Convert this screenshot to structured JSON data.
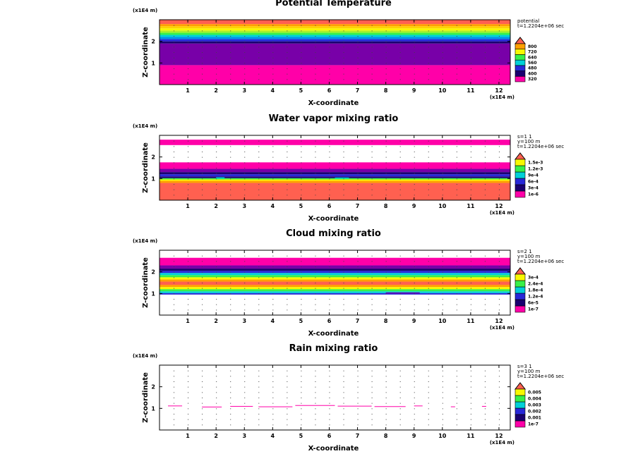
{
  "chart_data": [
    {
      "type": "heatmap",
      "title": "Potential Temperature",
      "xlabel": "X-coordinate",
      "ylabel": "Z-coordinate",
      "x_unit": "(x1E4 m)",
      "z_unit": "(x1E4 m)",
      "info_lines": [
        "potential",
        "t=1.2204e+06 sec"
      ],
      "xlim": [
        0,
        12.4
      ],
      "ylim": [
        0,
        3
      ],
      "xticks": [
        "1",
        "2",
        "3",
        "4",
        "5",
        "6",
        "7",
        "8",
        "9",
        "10",
        "11",
        "12"
      ],
      "yticks": [
        "1",
        "2"
      ],
      "colorbar_labels": [
        "320",
        "400",
        "480",
        "560",
        "640",
        "720",
        "800"
      ],
      "colorbar_colors": [
        "#ff00a8",
        "#1a0070",
        "#2828d8",
        "#00d0d8",
        "#38f048",
        "#f8f800",
        "#ffa000",
        "#ff6050"
      ],
      "layers": [
        {
          "z0": 0.0,
          "z1": 0.9,
          "color": "#ff00a8"
        },
        {
          "z0": 0.9,
          "z1": 1.9,
          "color": "#7800a8"
        },
        {
          "z0": 1.9,
          "z1": 2.0,
          "color": "#1a0070"
        },
        {
          "z0": 2.0,
          "z1": 2.1,
          "color": "#2828d8"
        },
        {
          "z0": 2.1,
          "z1": 2.2,
          "color": "#0090e8"
        },
        {
          "z0": 2.2,
          "z1": 2.3,
          "color": "#00d0d8"
        },
        {
          "z0": 2.3,
          "z1": 2.4,
          "color": "#38f048"
        },
        {
          "z0": 2.4,
          "z1": 2.5,
          "color": "#a8f028"
        },
        {
          "z0": 2.5,
          "z1": 2.6,
          "color": "#f8f800"
        },
        {
          "z0": 2.6,
          "z1": 2.7,
          "color": "#ffd000"
        },
        {
          "z0": 2.7,
          "z1": 2.8,
          "color": "#ffa000"
        },
        {
          "z0": 2.8,
          "z1": 3.0,
          "color": "#ff6050"
        }
      ],
      "specks": []
    },
    {
      "type": "heatmap",
      "title": "Water vapor mixing ratio",
      "xlabel": "X-coordinate",
      "ylabel": "Z-coordinate",
      "x_unit": "(x1E4 m)",
      "z_unit": "(x1E4 m)",
      "info_lines": [
        "s=1 1",
        "y=100 m",
        "t=1.2204e+06 sec"
      ],
      "xlim": [
        0,
        12.4
      ],
      "ylim": [
        0,
        3
      ],
      "xticks": [
        "1",
        "2",
        "3",
        "4",
        "5",
        "6",
        "7",
        "8",
        "9",
        "10",
        "11",
        "12"
      ],
      "yticks": [
        "1",
        "2"
      ],
      "colorbar_labels": [
        "1e-6",
        "3e-4",
        "6e-4",
        "9e-4",
        "1.2e-3",
        "1.5e-3"
      ],
      "colorbar_colors": [
        "#ff00a8",
        "#1a0070",
        "#2828d8",
        "#00d0d8",
        "#38f048",
        "#f8f800",
        "#ff6050"
      ],
      "layers": [
        {
          "z0": 0.0,
          "z1": 0.8,
          "color": "#ff6050"
        },
        {
          "z0": 0.8,
          "z1": 0.9,
          "color": "#ffa000"
        },
        {
          "z0": 0.9,
          "z1": 0.96,
          "color": "#f8f800"
        },
        {
          "z0": 0.96,
          "z1": 1.02,
          "color": "#38f048"
        },
        {
          "z0": 1.02,
          "z1": 1.1,
          "color": "#1a0070"
        },
        {
          "z0": 1.1,
          "z1": 1.2,
          "color": "#2828d8"
        },
        {
          "z0": 1.2,
          "z1": 1.3,
          "color": "#1a0070"
        },
        {
          "z0": 1.3,
          "z1": 1.45,
          "color": "#7800a8"
        },
        {
          "z0": 1.45,
          "z1": 1.75,
          "color": "#ff00a8"
        },
        {
          "z0": 2.55,
          "z1": 2.8,
          "color": "#ff00a8"
        }
      ],
      "specks": [
        {
          "x": 2.0,
          "z": 1.0,
          "w": 0.3,
          "h": 0.06,
          "color": "#00d0d8"
        },
        {
          "x": 6.2,
          "z": 1.0,
          "w": 0.5,
          "h": 0.05,
          "color": "#00d0d8"
        }
      ]
    },
    {
      "type": "heatmap",
      "title": "Cloud mixing ratio",
      "xlabel": "X-coordinate",
      "ylabel": "Z-coordinate",
      "x_unit": "(x1E4 m)",
      "z_unit": "(x1E4 m)",
      "info_lines": [
        "s=2 1",
        "y=100 m",
        "t=1.2204e+06 sec"
      ],
      "xlim": [
        0,
        12.4
      ],
      "ylim": [
        0,
        3
      ],
      "xticks": [
        "1",
        "2",
        "3",
        "4",
        "5",
        "6",
        "7",
        "8",
        "9",
        "10",
        "11",
        "12"
      ],
      "yticks": [
        "1",
        "2"
      ],
      "colorbar_labels": [
        "1e-7",
        "6e-5",
        "1.2e-4",
        "1.8e-4",
        "2.4e-4",
        "3e-4"
      ],
      "colorbar_colors": [
        "#ff00a8",
        "#1a0070",
        "#2828d8",
        "#00d0d8",
        "#38f048",
        "#f8f800",
        "#ff6050"
      ],
      "layers": [
        {
          "z0": 0.95,
          "z1": 1.02,
          "color": "#2828d8"
        },
        {
          "z0": 1.02,
          "z1": 1.1,
          "color": "#00d0d8"
        },
        {
          "z0": 1.1,
          "z1": 1.2,
          "color": "#38f048"
        },
        {
          "z0": 1.2,
          "z1": 1.3,
          "color": "#f8f800"
        },
        {
          "z0": 1.3,
          "z1": 1.4,
          "color": "#ffa000"
        },
        {
          "z0": 1.4,
          "z1": 1.55,
          "color": "#ff6050"
        },
        {
          "z0": 1.55,
          "z1": 1.65,
          "color": "#ffa000"
        },
        {
          "z0": 1.65,
          "z1": 1.75,
          "color": "#f8f800"
        },
        {
          "z0": 1.75,
          "z1": 1.85,
          "color": "#38f048"
        },
        {
          "z0": 1.85,
          "z1": 1.95,
          "color": "#00d0d8"
        },
        {
          "z0": 1.95,
          "z1": 2.05,
          "color": "#2828d8"
        },
        {
          "z0": 2.05,
          "z1": 2.15,
          "color": "#1a0070"
        },
        {
          "z0": 2.15,
          "z1": 2.3,
          "color": "#7800a8"
        },
        {
          "z0": 2.3,
          "z1": 2.65,
          "color": "#ff00a8"
        }
      ],
      "specks": [
        {
          "x": 5.5,
          "z": 1.35,
          "w": 1.5,
          "h": 0.05,
          "color": "#ffa000"
        },
        {
          "x": 8.0,
          "z": 1.0,
          "w": 1.2,
          "h": 0.05,
          "color": "#7800a8"
        }
      ]
    },
    {
      "type": "heatmap",
      "title": "Rain mixing ratio",
      "xlabel": "X-coordinate",
      "ylabel": "Z-coordinate",
      "x_unit": "(x1E4 m)",
      "z_unit": "(x1E4 m)",
      "info_lines": [
        "s=3 1",
        "y=100 m",
        "t=1.2204e+06 sec"
      ],
      "xlim": [
        0,
        12.4
      ],
      "ylim": [
        0,
        3
      ],
      "xticks": [
        "1",
        "2",
        "3",
        "4",
        "5",
        "6",
        "7",
        "8",
        "9",
        "10",
        "11",
        "12"
      ],
      "yticks": [
        "1",
        "2"
      ],
      "colorbar_labels": [
        "1e-7",
        "0.001",
        "0.002",
        "0.003",
        "0.004",
        "0.005"
      ],
      "colorbar_colors": [
        "#ff00a8",
        "#1a0070",
        "#2828d8",
        "#00d0d8",
        "#38f048",
        "#f8f800",
        "#ff6050"
      ],
      "layers": [],
      "specks": [
        {
          "x": 0.3,
          "z": 1.1,
          "w": 0.5,
          "h": 0.03,
          "color": "#ff00a8"
        },
        {
          "x": 1.5,
          "z": 1.05,
          "w": 0.7,
          "h": 0.03,
          "color": "#ff00a8"
        },
        {
          "x": 2.5,
          "z": 1.08,
          "w": 0.8,
          "h": 0.03,
          "color": "#ff00a8"
        },
        {
          "x": 3.5,
          "z": 1.06,
          "w": 1.2,
          "h": 0.03,
          "color": "#ff00a8"
        },
        {
          "x": 4.8,
          "z": 1.12,
          "w": 1.4,
          "h": 0.03,
          "color": "#ff00a8"
        },
        {
          "x": 6.3,
          "z": 1.09,
          "w": 1.2,
          "h": 0.03,
          "color": "#ff00a8"
        },
        {
          "x": 7.6,
          "z": 1.07,
          "w": 1.1,
          "h": 0.03,
          "color": "#ff00a8"
        },
        {
          "x": 9.0,
          "z": 1.1,
          "w": 0.3,
          "h": 0.03,
          "color": "#ff00a8"
        },
        {
          "x": 10.3,
          "z": 1.06,
          "w": 0.15,
          "h": 0.03,
          "color": "#ff00a8"
        },
        {
          "x": 11.4,
          "z": 1.08,
          "w": 0.15,
          "h": 0.03,
          "color": "#ff00a8"
        }
      ]
    }
  ]
}
